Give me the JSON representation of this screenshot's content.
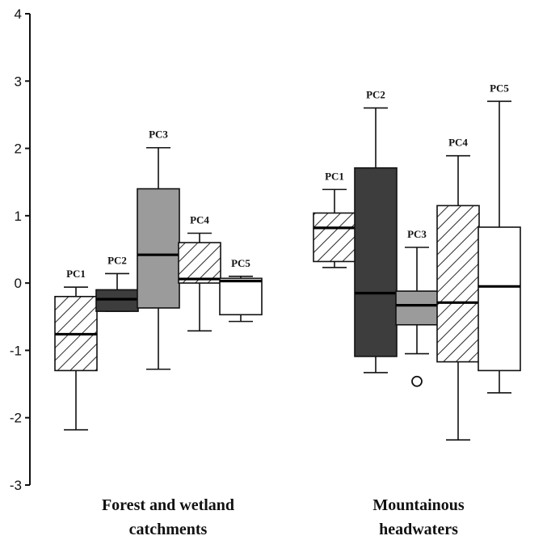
{
  "chart_data": {
    "type": "boxplot",
    "ylim": [
      -3,
      4
    ],
    "yticks": [
      -3,
      -2,
      -1,
      0,
      1,
      2,
      3,
      4
    ],
    "groups": [
      {
        "label_lines": [
          "Forest and wetland",
          "catchments"
        ],
        "boxes": [
          {
            "label": "PC1",
            "fill": "hatch",
            "whisker_low": -2.18,
            "q1": -1.3,
            "median": -0.76,
            "q3": -0.2,
            "whisker_high": -0.06
          },
          {
            "label": "PC2",
            "fill": "dark",
            "whisker_low": -0.42,
            "q1": -0.42,
            "median": -0.24,
            "q3": -0.1,
            "whisker_high": 0.14
          },
          {
            "label": "PC3",
            "fill": "gray",
            "whisker_low": -1.28,
            "q1": -0.37,
            "median": 0.42,
            "q3": 1.4,
            "whisker_high": 2.01
          },
          {
            "label": "PC4",
            "fill": "hatch",
            "whisker_low": -0.71,
            "q1": 0.0,
            "median": 0.06,
            "q3": 0.6,
            "whisker_high": 0.74
          },
          {
            "label": "PC5",
            "fill": "white",
            "whisker_low": -0.57,
            "q1": -0.47,
            "median": 0.03,
            "q3": 0.07,
            "whisker_high": 0.1
          }
        ]
      },
      {
        "label_lines": [
          "Mountainous",
          "headwaters"
        ],
        "boxes": [
          {
            "label": "PC1",
            "fill": "hatch",
            "whisker_low": 0.23,
            "q1": 0.32,
            "median": 0.82,
            "q3": 1.04,
            "whisker_high": 1.39
          },
          {
            "label": "PC2",
            "fill": "dark",
            "whisker_low": -1.33,
            "q1": -1.09,
            "median": -0.15,
            "q3": 1.71,
            "whisker_high": 2.6
          },
          {
            "label": "PC3",
            "fill": "gray",
            "whisker_low": -1.05,
            "q1": -0.62,
            "median": -0.33,
            "q3": -0.12,
            "whisker_high": 0.53,
            "outliers": [
              -1.46
            ]
          },
          {
            "label": "PC4",
            "fill": "hatch",
            "whisker_low": -2.33,
            "q1": -1.17,
            "median": -0.29,
            "q3": 1.15,
            "whisker_high": 1.89
          },
          {
            "label": "PC5",
            "fill": "white",
            "whisker_low": -1.63,
            "q1": -1.3,
            "median": -0.05,
            "q3": 0.83,
            "whisker_high": 2.7
          }
        ]
      }
    ],
    "colors": {
      "dark": "#3d3d3d",
      "gray": "#9b9b9b",
      "white": "#ffffff",
      "line": "#111111"
    },
    "grid": false,
    "legend": "none"
  }
}
